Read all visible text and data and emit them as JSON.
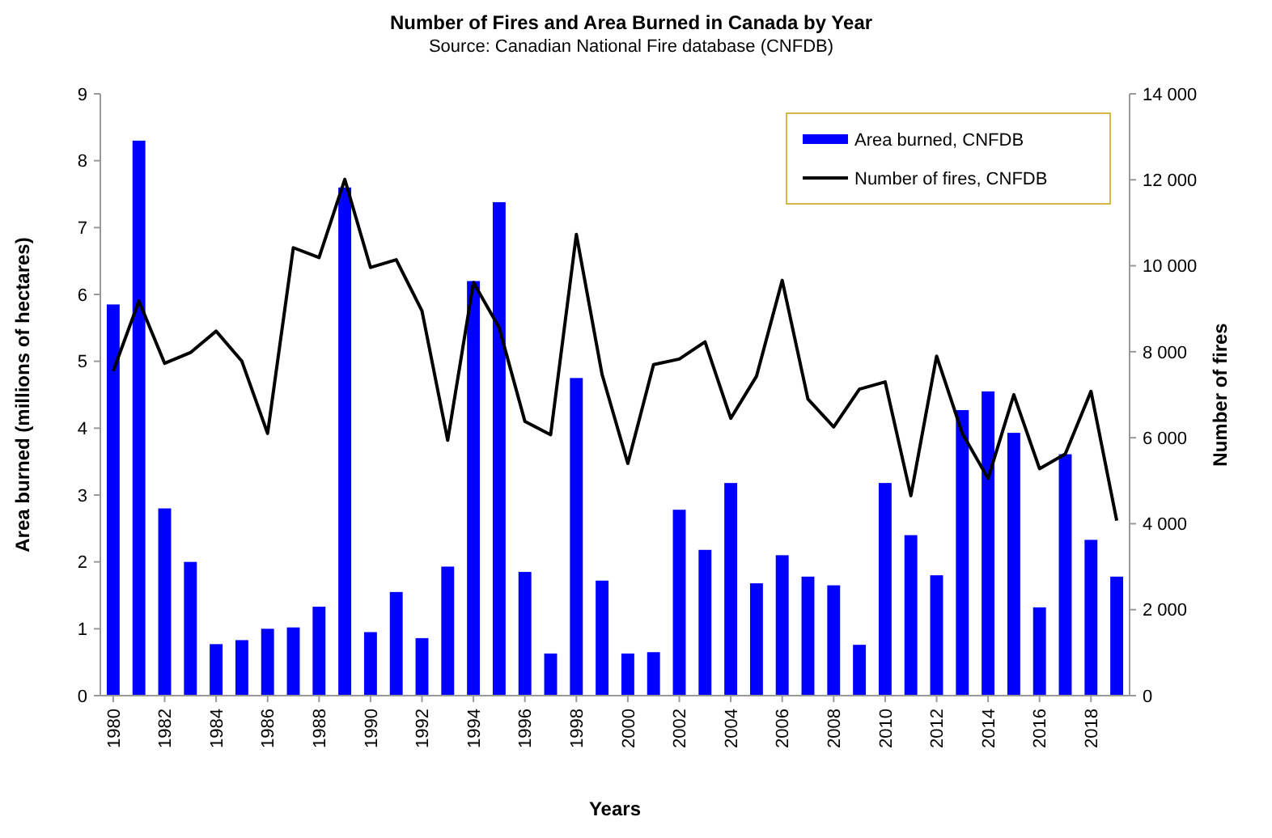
{
  "chart_data": {
    "type": "bar",
    "title": "Number of Fires and Area Burned in Canada by Year",
    "subtitle": "Source: Canadian National Fire database (CNFDB)",
    "xlabel": "Years",
    "ylabel": "Area burned (millions of hectares)",
    "y2label": "Number of fires",
    "categories": [
      "1980",
      null,
      "1982",
      null,
      "1984",
      null,
      "1986",
      null,
      "1988",
      null,
      "1990",
      null,
      "1992",
      null,
      "1994",
      null,
      "1996",
      null,
      "1998",
      null,
      "2000",
      null,
      "2002",
      null,
      "2004",
      null,
      "2006",
      null,
      "2008",
      null,
      "2010",
      null,
      "2012",
      null,
      "2014",
      null,
      "2016",
      null,
      "2018",
      null
    ],
    "series": [
      {
        "name": "Area burned, CNFDB",
        "color": "#0000ff",
        "values": [
          5.85,
          8.3,
          2.8,
          2.0,
          0.77,
          0.83,
          1.0,
          1.02,
          1.33,
          7.6,
          0.95,
          1.55,
          0.86,
          1.93,
          6.2,
          7.38,
          1.85,
          0.63,
          4.75,
          1.72,
          0.63,
          0.65,
          2.78,
          2.18,
          3.18,
          1.68,
          2.1,
          1.78,
          1.65,
          0.76,
          3.18,
          2.4,
          1.8,
          4.27,
          4.55,
          3.93,
          1.32,
          3.61,
          2.33,
          1.78
        ]
      },
      {
        "name": "Number of fires, CNFDB",
        "type": "line",
        "axis": "y2",
        "color": "#000000",
        "values": [
          7550,
          9180,
          7730,
          7980,
          8480,
          7780,
          6100,
          10420,
          10190,
          12010,
          9960,
          10140,
          8950,
          5940,
          9610,
          8560,
          6380,
          6070,
          10730,
          7470,
          5400,
          7700,
          7830,
          8230,
          6450,
          7430,
          9660,
          6900,
          6250,
          7130,
          7300,
          4650,
          7900,
          6100,
          5050,
          7000,
          5280,
          5620,
          7080,
          4070
        ]
      }
    ],
    "ylim": [
      0,
      9
    ],
    "yticks": [
      0,
      1,
      2,
      3,
      4,
      5,
      6,
      7,
      8,
      9
    ],
    "y2lim": [
      0,
      14000
    ],
    "y2ticks": [
      0,
      {
        "value": 2000,
        "label": "2 000"
      },
      {
        "value": 4000,
        "label": "4 000"
      },
      {
        "value": 6000,
        "label": "6 000"
      },
      {
        "value": 8000,
        "label": "8 000"
      },
      {
        "value": 10000,
        "label": "10 000"
      },
      {
        "value": 12000,
        "label": "12 000"
      },
      {
        "value": 14000,
        "label": "14 000"
      }
    ],
    "legend": "top right",
    "grid": false
  }
}
